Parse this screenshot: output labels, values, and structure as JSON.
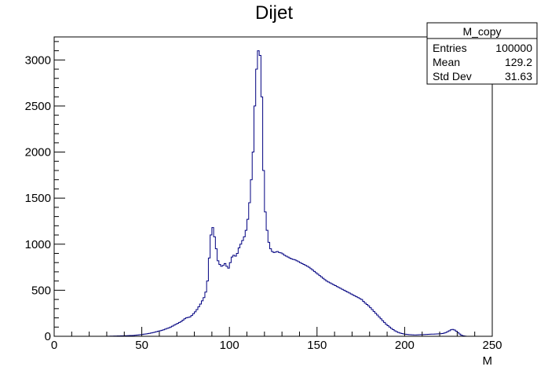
{
  "chart_data": {
    "type": "histogram",
    "title": "Dijet",
    "xlabel": "M",
    "ylabel": "",
    "xlim": [
      0,
      250
    ],
    "ylim": [
      0,
      3250
    ],
    "x_major_ticks": [
      0,
      50,
      100,
      150,
      200,
      250
    ],
    "y_major_ticks": [
      0,
      500,
      1000,
      1500,
      2000,
      2500,
      3000
    ],
    "grid": false,
    "line_color": "#000080",
    "bin_width": 1,
    "bin_start": 30,
    "values": [
      1,
      1,
      2,
      2,
      3,
      3,
      4,
      4,
      5,
      5,
      6,
      6,
      7,
      8,
      9,
      10,
      12,
      14,
      16,
      18,
      20,
      23,
      26,
      29,
      32,
      36,
      40,
      45,
      50,
      55,
      60,
      65,
      70,
      78,
      85,
      92,
      100,
      110,
      120,
      130,
      140,
      150,
      160,
      175,
      190,
      200,
      205,
      210,
      225,
      245,
      265,
      290,
      320,
      350,
      385,
      420,
      480,
      600,
      850,
      1100,
      1180,
      1080,
      950,
      820,
      780,
      760,
      770,
      790,
      760,
      740,
      800,
      860,
      880,
      870,
      900,
      960,
      1000,
      1040,
      1080,
      1150,
      1270,
      1450,
      1700,
      2000,
      2500,
      2900,
      3100,
      3050,
      2600,
      1800,
      1350,
      1150,
      1020,
      950,
      920,
      910,
      915,
      920,
      910,
      905,
      895,
      880,
      870,
      860,
      850,
      840,
      835,
      830,
      820,
      810,
      800,
      790,
      780,
      770,
      760,
      750,
      735,
      720,
      705,
      690,
      675,
      660,
      645,
      630,
      615,
      600,
      590,
      580,
      570,
      560,
      550,
      540,
      530,
      520,
      510,
      500,
      490,
      480,
      470,
      460,
      450,
      440,
      430,
      420,
      410,
      400,
      380,
      360,
      345,
      330,
      310,
      290,
      270,
      250,
      230,
      210,
      190,
      170,
      150,
      130,
      115,
      100,
      85,
      72,
      60,
      50,
      42,
      35,
      30,
      26,
      22,
      20,
      18,
      17,
      16,
      15,
      15,
      16,
      17,
      18,
      18,
      19,
      20,
      21,
      22,
      23,
      24,
      25,
      26,
      27,
      28,
      30,
      34,
      40,
      50,
      60,
      70,
      75,
      68,
      55,
      40,
      25,
      12,
      5,
      2,
      0,
      0,
      0,
      0,
      0,
      0,
      0,
      0,
      0,
      0
    ],
    "stats_box": {
      "title": "M_copy",
      "rows": [
        {
          "label": "Entries",
          "value": "100000"
        },
        {
          "label": "Mean",
          "value": "129.2"
        },
        {
          "label": "Std Dev",
          "value": "31.63"
        }
      ]
    }
  }
}
